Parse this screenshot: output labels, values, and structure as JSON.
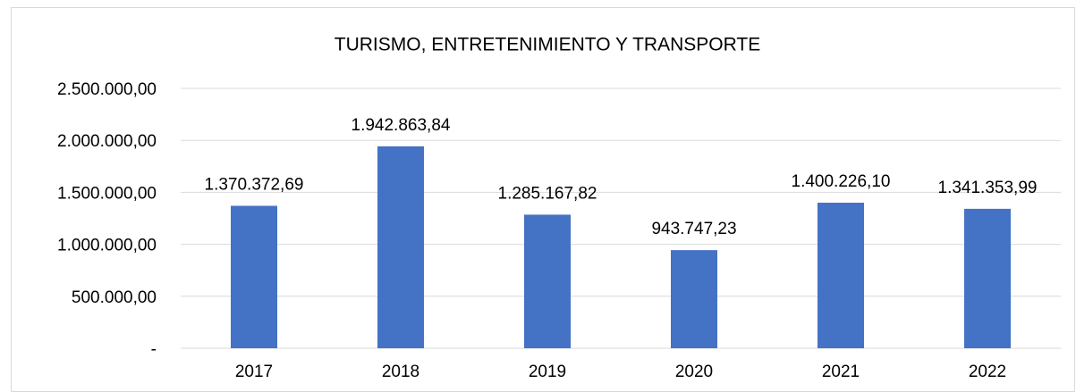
{
  "chart_data": {
    "type": "bar",
    "title": "TURISMO, ENTRETENIMIENTO Y TRANSPORTE",
    "categories": [
      "2017",
      "2018",
      "2019",
      "2020",
      "2021",
      "2022"
    ],
    "values": [
      1370372.69,
      1942863.84,
      1285167.82,
      943747.23,
      1400226.1,
      1341353.99
    ],
    "value_labels": [
      "1.370.372,69",
      "1.942.863,84",
      "1.285.167,82",
      "943.747,23",
      "1.400.226,10",
      "1.341.353,99"
    ],
    "color": "#4472c4",
    "ylim": [
      0,
      2500000
    ],
    "yticks": [
      {
        "value": 0,
        "label": "-"
      },
      {
        "value": 500000,
        "label": "500.000,00"
      },
      {
        "value": 1000000,
        "label": "1.000.000,00"
      },
      {
        "value": 1500000,
        "label": "1.500.000,00"
      },
      {
        "value": 2000000,
        "label": "2.000.000,00"
      },
      {
        "value": 2500000,
        "label": "2.500.000,00"
      }
    ],
    "grid": true
  }
}
